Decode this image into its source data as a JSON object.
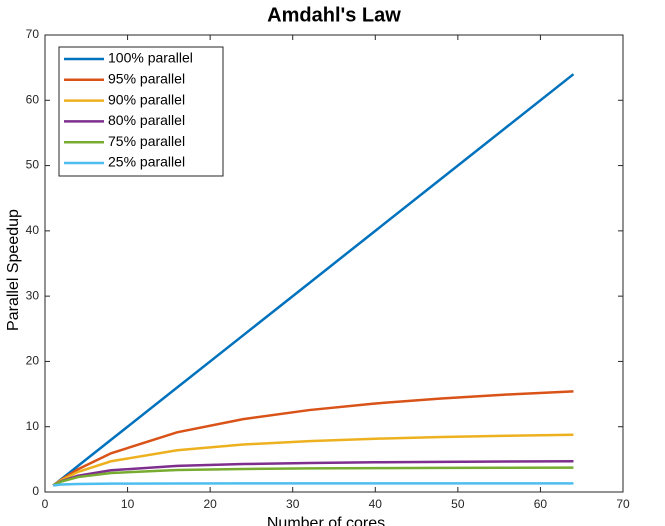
{
  "chart_data": {
    "type": "line",
    "title": "Amdahl's Law",
    "x_label": "Number of cores",
    "y_label": "Parallel Speedup",
    "x": [
      1,
      2,
      4,
      8,
      16,
      24,
      32,
      40,
      48,
      56,
      64
    ],
    "series": [
      {
        "name": "100% parallel",
        "color": "#0072bd",
        "values": [
          1,
          2,
          4,
          8,
          16,
          24,
          32,
          40,
          48,
          56,
          64
        ]
      },
      {
        "name": "95% parallel",
        "color": "#d95319",
        "values": [
          1,
          1.9,
          3.48,
          5.93,
          9.14,
          11.16,
          12.55,
          13.56,
          14.33,
          14.93,
          15.42
        ]
      },
      {
        "name": "90% parallel",
        "color": "#edb120",
        "values": [
          1,
          1.82,
          3.08,
          4.71,
          6.4,
          7.27,
          7.8,
          8.16,
          8.42,
          8.62,
          8.77
        ]
      },
      {
        "name": "80% parallel",
        "color": "#7e2f8e",
        "values": [
          1,
          1.67,
          2.5,
          3.33,
          4,
          4.29,
          4.44,
          4.55,
          4.62,
          4.67,
          4.71
        ]
      },
      {
        "name": "75% parallel",
        "color": "#77ac30",
        "values": [
          1,
          1.6,
          2.29,
          2.91,
          3.37,
          3.53,
          3.61,
          3.66,
          3.69,
          3.71,
          3.73
        ]
      },
      {
        "name": "25% parallel",
        "color": "#4dbeee",
        "values": [
          1,
          1.14,
          1.23,
          1.28,
          1.31,
          1.32,
          1.32,
          1.33,
          1.33,
          1.33,
          1.33
        ]
      }
    ],
    "xlim": [
      0,
      70
    ],
    "xticks": [
      0,
      10,
      20,
      30,
      40,
      50,
      60,
      70
    ],
    "ylim": [
      0,
      70
    ],
    "yticks": [
      0,
      10,
      20,
      30,
      40,
      50,
      60,
      70
    ],
    "legend": "top-left"
  }
}
